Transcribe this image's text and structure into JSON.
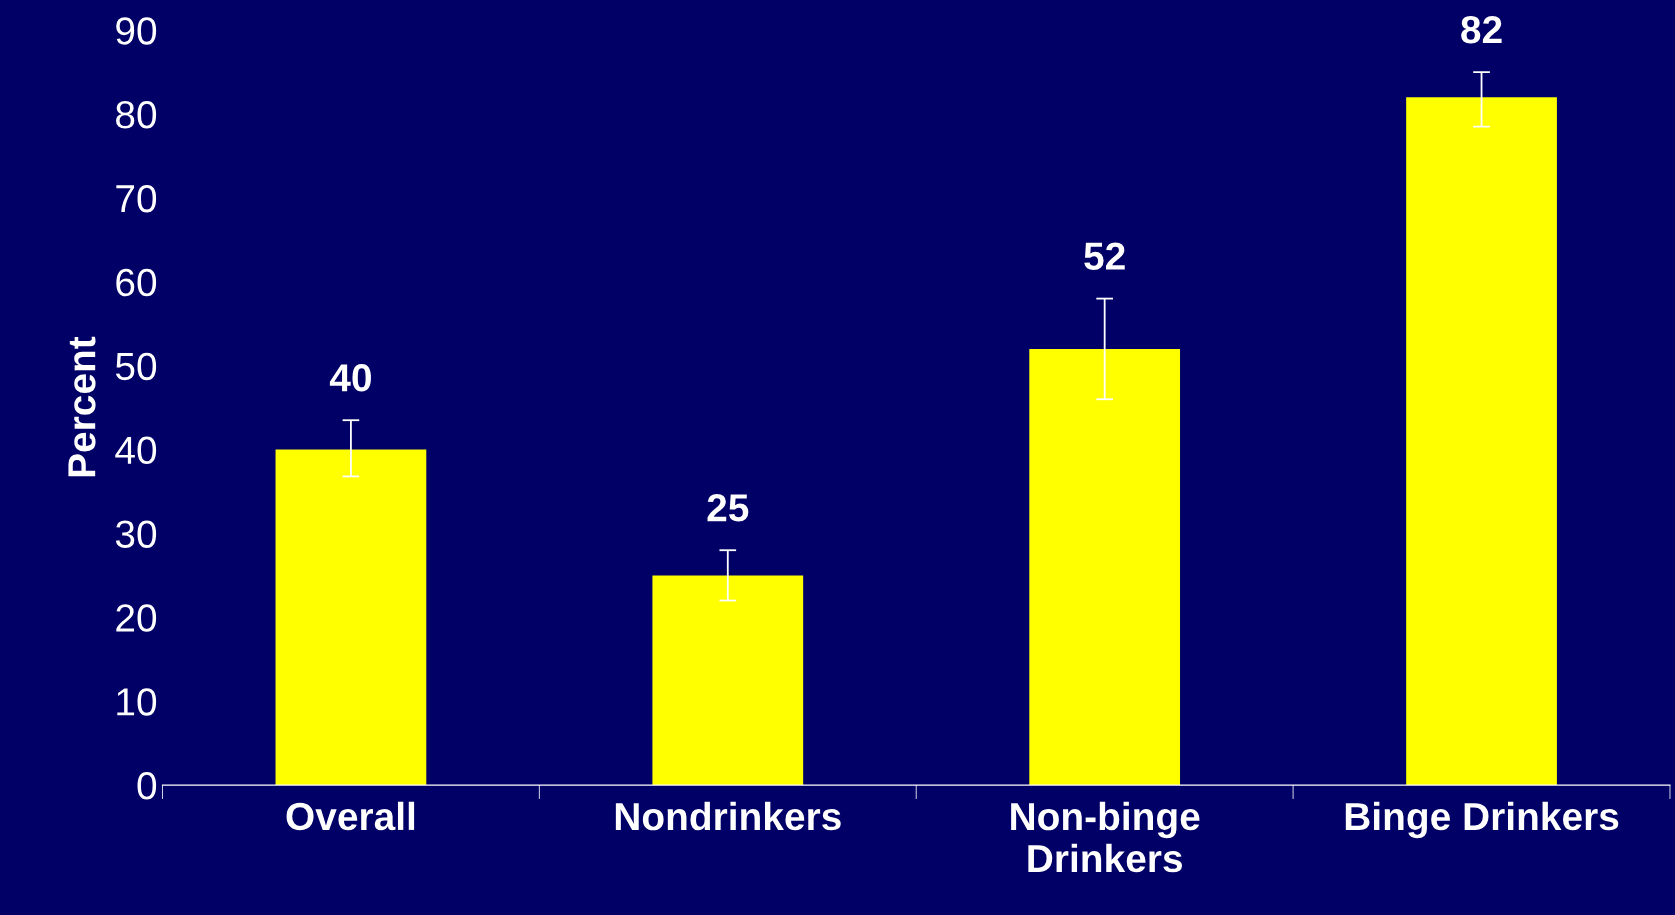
{
  "chart_data": {
    "type": "bar",
    "ylabel": "Percent",
    "categories": [
      "Overall",
      "Nondrinkers",
      "Non-binge\nDrinkers",
      "Binge Drinkers"
    ],
    "values": [
      40,
      25,
      52,
      82
    ],
    "errors": [
      [
        36.8,
        43.5
      ],
      [
        22,
        28
      ],
      [
        46,
        58
      ],
      [
        78.5,
        85
      ]
    ],
    "color": "#ffff00",
    "data_labels": true,
    "grid": false,
    "legend": false,
    "ylim": [
      0,
      90
    ],
    "yticks": [
      0,
      10,
      20,
      30,
      40,
      50,
      60,
      70,
      80,
      90
    ]
  }
}
